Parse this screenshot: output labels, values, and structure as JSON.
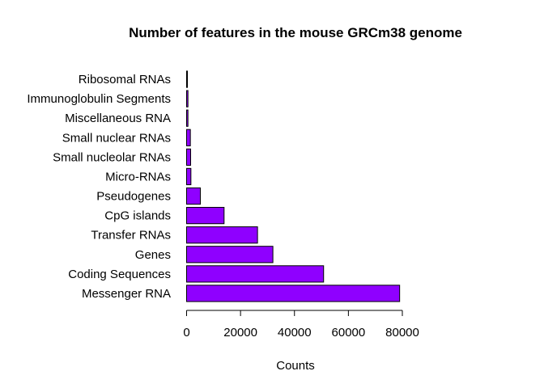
{
  "chart_data": {
    "type": "bar",
    "orientation": "horizontal",
    "title": "Number of features in the mouse GRCm38 genome",
    "xlabel": "Counts",
    "ylabel": "",
    "categories": [
      "Messenger RNA",
      "Coding Sequences",
      "Genes",
      "Transfer RNAs",
      "CpG islands",
      "Pseudogenes",
      "Micro-RNAs",
      "Small nucleolar RNAs",
      "Small nuclear RNAs",
      "Miscellaneous RNA",
      "Immunoglobulin Segments",
      "Ribosomal RNAs"
    ],
    "values": [
      79000,
      50800,
      32000,
      26300,
      13900,
      5100,
      1600,
      1500,
      1400,
      500,
      500,
      300
    ],
    "xlim": [
      0,
      80000
    ],
    "xticks": [
      0,
      20000,
      40000,
      60000,
      80000
    ],
    "bar_color": "#8f00ff",
    "grid": false,
    "legend": "none"
  }
}
